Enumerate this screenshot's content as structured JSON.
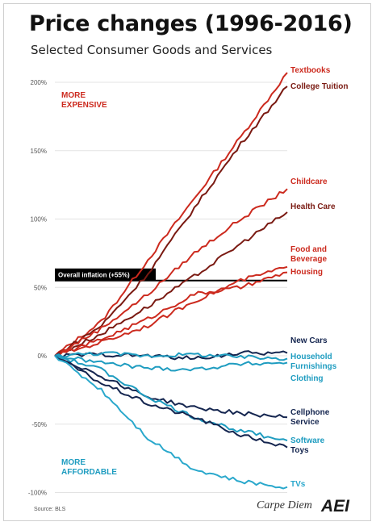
{
  "title": "Price changes (1996-2016)",
  "subtitle": "Selected Consumer Goods and Services",
  "source": "Source: BLS",
  "brand": "Carpe Diem",
  "logo_text": "AEI",
  "colors": {
    "expensive": "#cc2a1e",
    "dark_red": "#7a1a12",
    "navy": "#14254f",
    "teal": "#1e9cc0",
    "cyan": "#2aa8cc",
    "grid": "#e3e3e3"
  },
  "annotations": {
    "more_expensive": [
      "MORE",
      "EXPENSIVE"
    ],
    "more_affordable": [
      "MORE",
      "AFFORDABLE"
    ],
    "inflation_label": "Overall inflation (+55%)"
  },
  "chart_data": {
    "type": "line",
    "title": "Price changes (1996-2016)",
    "subtitle": "Selected Consumer Goods and Services",
    "y_unit": "%",
    "ylim": [
      -100,
      210
    ],
    "xlim": [
      1996,
      2016
    ],
    "y_ticks": [
      "200%",
      "150%",
      "100%",
      "50%",
      "0%",
      "-50%",
      "-100%"
    ],
    "y_tick_values": [
      200,
      150,
      100,
      50,
      0,
      -50,
      -100
    ],
    "grid": true,
    "reference_line": {
      "value": 55,
      "label": "Overall inflation (+55%)"
    },
    "series": [
      {
        "name": "Textbooks",
        "label_lines": [
          "Textbooks"
        ],
        "color": "#cc2a1e",
        "x": [
          1996,
          2000,
          2004,
          2008,
          2012,
          2016
        ],
        "y": [
          0,
          25,
          70,
          115,
          160,
          207
        ]
      },
      {
        "name": "College Tuition",
        "label_lines": [
          "College Tuition"
        ],
        "color": "#7a1a12",
        "x": [
          1996,
          2000,
          2004,
          2008,
          2012,
          2016
        ],
        "y": [
          0,
          22,
          60,
          108,
          155,
          197
        ]
      },
      {
        "name": "Childcare",
        "label_lines": [
          "Childcare"
        ],
        "color": "#cc2a1e",
        "x": [
          1996,
          2000,
          2004,
          2008,
          2012,
          2016
        ],
        "y": [
          0,
          20,
          45,
          75,
          100,
          122
        ]
      },
      {
        "name": "Health Care",
        "label_lines": [
          "Health Care"
        ],
        "color": "#7a1a12",
        "x": [
          1996,
          2000,
          2004,
          2008,
          2012,
          2016
        ],
        "y": [
          0,
          16,
          36,
          58,
          82,
          105
        ]
      },
      {
        "name": "Food and Beverage",
        "label_lines": [
          "Food and",
          "Beverage"
        ],
        "color": "#cc2a1e",
        "x": [
          1996,
          2000,
          2004,
          2008,
          2012,
          2016
        ],
        "y": [
          0,
          10,
          22,
          40,
          55,
          65
        ]
      },
      {
        "name": "Housing",
        "label_lines": [
          "Housing"
        ],
        "color": "#cc2a1e",
        "x": [
          1996,
          2000,
          2004,
          2008,
          2012,
          2016
        ],
        "y": [
          0,
          12,
          27,
          45,
          50,
          61
        ]
      },
      {
        "name": "New Cars",
        "label_lines": [
          "New Cars"
        ],
        "color": "#14254f",
        "x": [
          1996,
          2000,
          2004,
          2008,
          2012,
          2016
        ],
        "y": [
          0,
          1,
          0,
          -2,
          2,
          2
        ]
      },
      {
        "name": "Household Furnishings",
        "label_lines": [
          "Household",
          "Furnishings"
        ],
        "color": "#1e9cc0",
        "x": [
          1996,
          2000,
          2004,
          2008,
          2012,
          2016
        ],
        "y": [
          0,
          2,
          0,
          1,
          -1,
          -2
        ]
      },
      {
        "name": "Clothing",
        "label_lines": [
          "Clothing"
        ],
        "color": "#1e9cc0",
        "x": [
          1996,
          2000,
          2004,
          2008,
          2012,
          2016
        ],
        "y": [
          0,
          -5,
          -9,
          -10,
          -6,
          -5
        ]
      },
      {
        "name": "Cellphone Service",
        "label_lines": [
          "Cellphone",
          "Service"
        ],
        "color": "#14254f",
        "x": [
          1996,
          2000,
          2004,
          2008,
          2012,
          2016
        ],
        "y": [
          0,
          -15,
          -30,
          -38,
          -42,
          -45
        ]
      },
      {
        "name": "Software",
        "label_lines": [
          "Software"
        ],
        "color": "#1e9cc0",
        "x": [
          1996,
          2000,
          2004,
          2008,
          2012,
          2016
        ],
        "y": [
          0,
          -10,
          -30,
          -45,
          -55,
          -62
        ]
      },
      {
        "name": "Toys",
        "label_lines": [
          "Toys"
        ],
        "color": "#14254f",
        "x": [
          1996,
          2000,
          2004,
          2008,
          2012,
          2016
        ],
        "y": [
          0,
          -20,
          -35,
          -45,
          -58,
          -67
        ]
      },
      {
        "name": "TVs",
        "label_lines": [
          "TVs"
        ],
        "color": "#2aa8cc",
        "x": [
          1996,
          2000,
          2004,
          2008,
          2012,
          2016
        ],
        "y": [
          0,
          -25,
          -60,
          -83,
          -92,
          -96
        ]
      }
    ]
  }
}
